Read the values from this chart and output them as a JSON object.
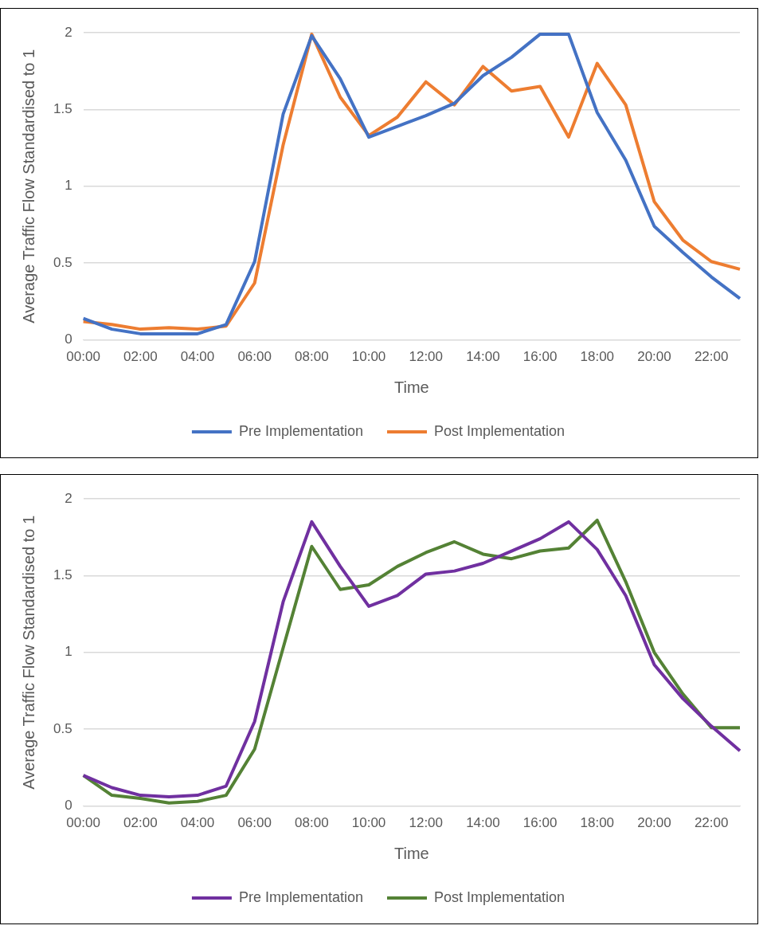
{
  "chart_data": [
    {
      "type": "line",
      "xlabel": "Time",
      "ylabel": "Average Traffic Flow Standardised to 1",
      "categories": [
        "00:00",
        null,
        "02:00",
        null,
        "04:00",
        null,
        "06:00",
        null,
        "08:00",
        null,
        "10:00",
        null,
        "12:00",
        null,
        "14:00",
        null,
        "16:00",
        null,
        "18:00",
        null,
        "20:00",
        null,
        "22:00",
        null
      ],
      "ylim": [
        0,
        2
      ],
      "yticks": [
        0,
        0.5,
        1,
        1.5,
        2
      ],
      "grid": "y",
      "legend": "bottom",
      "series": [
        {
          "name": "Pre Implementation",
          "color": "#4472c4",
          "values": [
            0.14,
            0.07,
            0.04,
            0.04,
            0.04,
            0.1,
            0.51,
            1.47,
            1.98,
            1.7,
            1.32,
            1.39,
            1.46,
            1.54,
            1.72,
            1.84,
            1.99,
            1.99,
            1.48,
            1.17,
            0.74,
            0.57,
            0.41,
            0.27
          ]
        },
        {
          "name": "Post Implementation",
          "color": "#ed7d31",
          "values": [
            0.12,
            0.1,
            0.07,
            0.08,
            0.07,
            0.09,
            0.37,
            1.27,
            1.99,
            1.58,
            1.33,
            1.45,
            1.68,
            1.53,
            1.78,
            1.62,
            1.65,
            1.32,
            1.8,
            1.53,
            0.9,
            0.65,
            0.51,
            0.46
          ]
        }
      ]
    },
    {
      "type": "line",
      "xlabel": "Time",
      "ylabel": "Average Traffic Flow Standardised to 1",
      "categories": [
        "00:00",
        null,
        "02:00",
        null,
        "04:00",
        null,
        "06:00",
        null,
        "08:00",
        null,
        "10:00",
        null,
        "12:00",
        null,
        "14:00",
        null,
        "16:00",
        null,
        "18:00",
        null,
        "20:00",
        null,
        "22:00",
        null
      ],
      "ylim": [
        0,
        2
      ],
      "yticks": [
        0,
        0.5,
        1,
        1.5,
        2
      ],
      "grid": "y",
      "legend": "bottom",
      "series": [
        {
          "name": "Pre Implementation",
          "color": "#7030a0",
          "values": [
            0.2,
            0.12,
            0.07,
            0.06,
            0.07,
            0.13,
            0.55,
            1.33,
            1.85,
            1.56,
            1.3,
            1.37,
            1.51,
            1.53,
            1.58,
            1.66,
            1.74,
            1.85,
            1.67,
            1.37,
            0.92,
            0.7,
            0.52,
            0.36
          ]
        },
        {
          "name": "Post Implementation",
          "color": "#548235",
          "values": [
            0.2,
            0.07,
            0.05,
            0.02,
            0.03,
            0.07,
            0.37,
            1.03,
            1.69,
            1.41,
            1.44,
            1.56,
            1.65,
            1.72,
            1.64,
            1.61,
            1.66,
            1.68,
            1.86,
            1.46,
            1.0,
            0.73,
            0.51,
            0.51
          ]
        }
      ]
    }
  ]
}
